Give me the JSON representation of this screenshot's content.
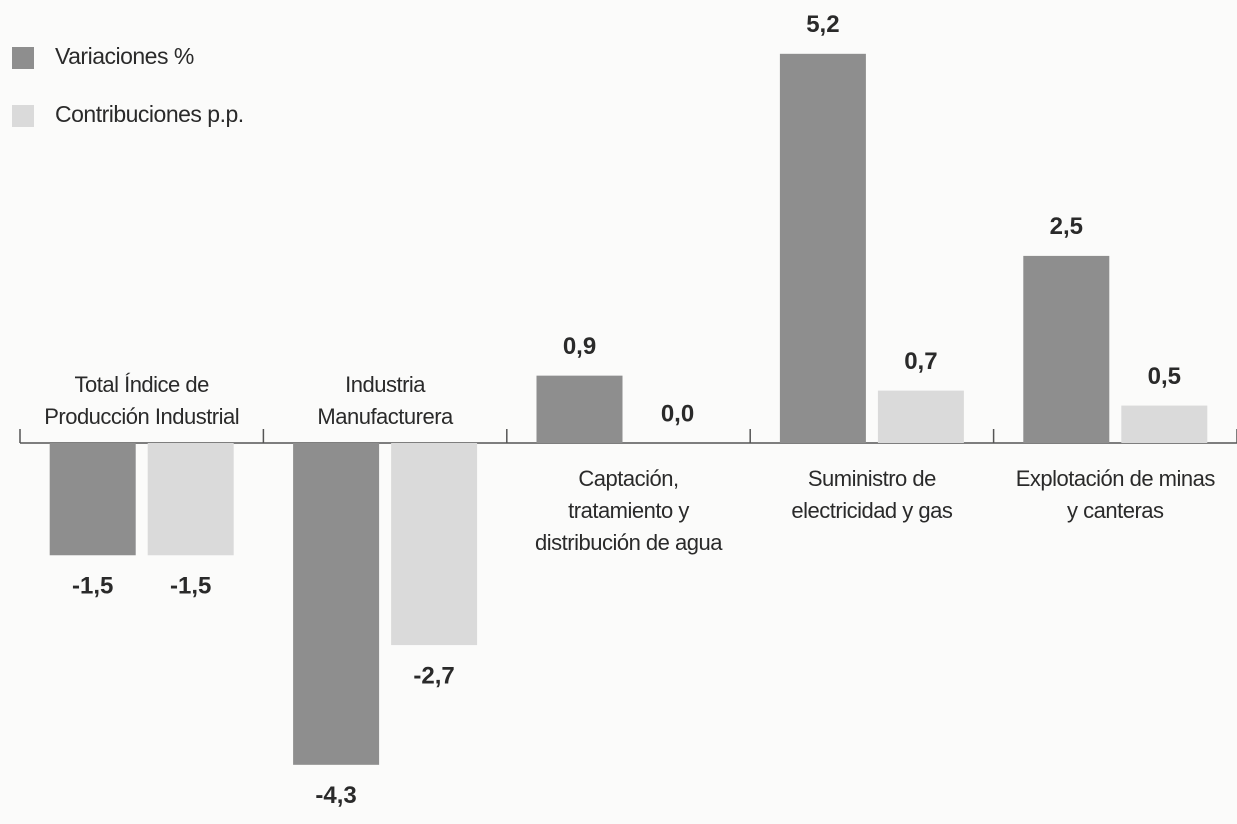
{
  "chart_data": {
    "type": "bar",
    "categories": [
      "Total Índice de Producción Industrial",
      "Industria Manufacturera",
      "Captación, tratamiento y distribución de agua",
      "Suministro de electricidad y gas",
      "Explotación de minas y canteras"
    ],
    "series": [
      {
        "name": "Variaciones %",
        "color": "#8e8e8e",
        "values": [
          -1.5,
          -4.3,
          0.9,
          5.2,
          2.5
        ],
        "value_labels": [
          "-1,5",
          "-4,3",
          "0,9",
          "5,2",
          "2,5"
        ]
      },
      {
        "name": "Contribuciones p.p.",
        "color": "#dadada",
        "values": [
          -1.5,
          -2.7,
          0.0,
          0.7,
          0.5
        ],
        "value_labels": [
          "-1,5",
          "-2,7",
          "0,0",
          "0,7",
          "0,5"
        ]
      }
    ],
    "legend": "top-left"
  }
}
